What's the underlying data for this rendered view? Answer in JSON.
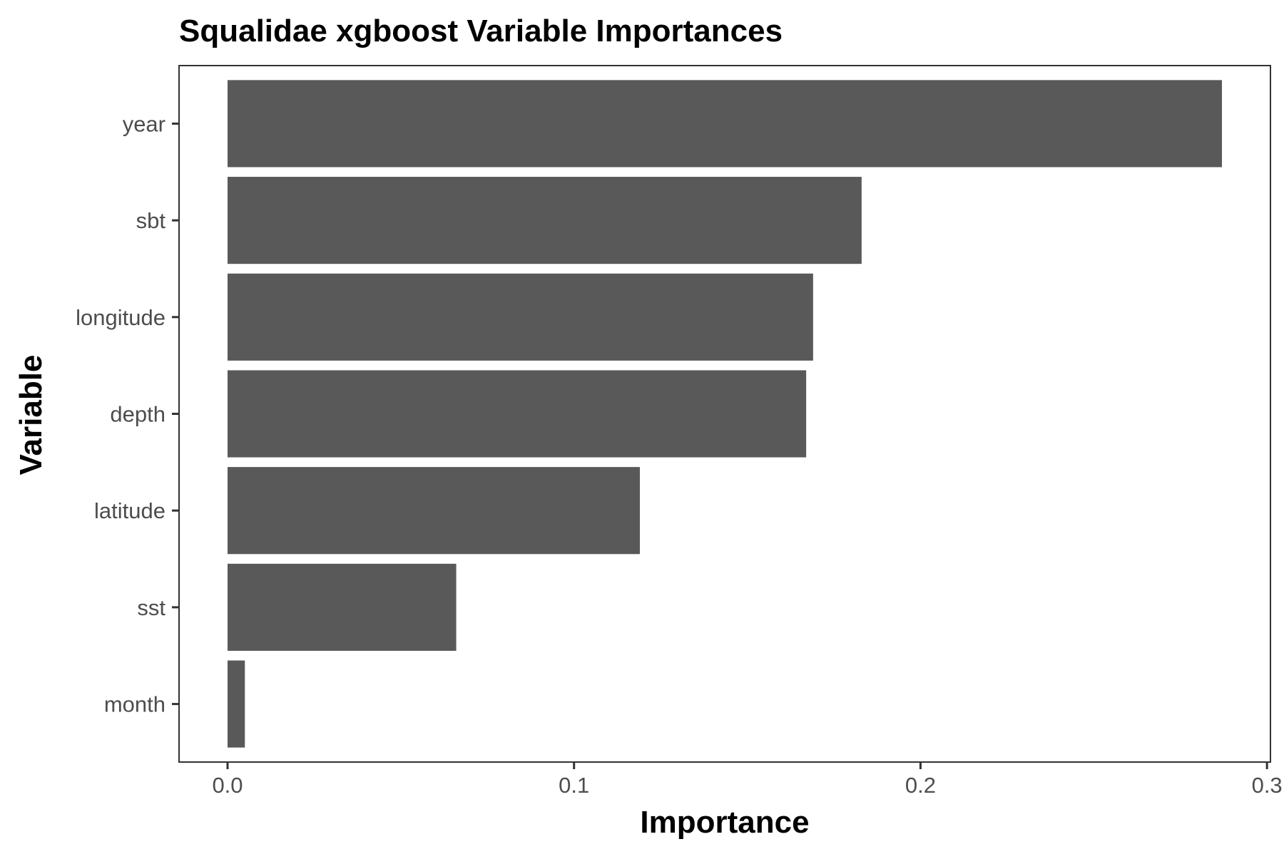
{
  "chart_data": {
    "type": "bar",
    "orientation": "horizontal",
    "title": "Squalidae xgboost Variable Importances",
    "xlabel": "Importance",
    "ylabel": "Variable",
    "categories": [
      "year",
      "sbt",
      "longitude",
      "depth",
      "latitude",
      "sst",
      "month"
    ],
    "values": [
      0.287,
      0.183,
      0.169,
      0.167,
      0.119,
      0.066,
      0.005
    ],
    "xlim": [
      -0.014,
      0.301
    ],
    "xticks": [
      0.0,
      0.1,
      0.2,
      0.3
    ],
    "xtick_labels": [
      "0.0",
      "0.1",
      "0.2",
      "0.3"
    ],
    "grid": false,
    "legend": "none",
    "bar_color": "#595959",
    "panel_border_color": "#333333"
  }
}
